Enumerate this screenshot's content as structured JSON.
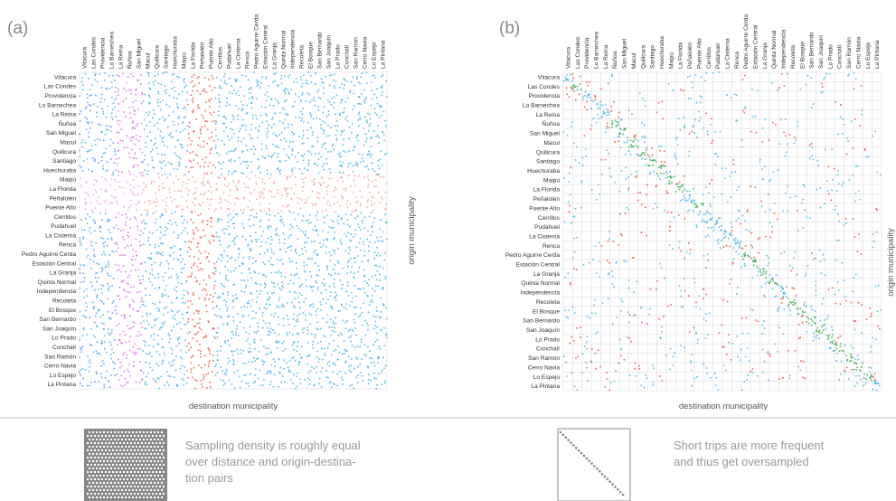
{
  "panels": [
    {
      "label": "(a)",
      "x_axis_label": "destination municipality",
      "y_axis_label": "origin municipality"
    },
    {
      "label": "(b)",
      "x_axis_label": "destination municipality",
      "y_axis_label": "origin municipality"
    }
  ],
  "municipalities": [
    "Vitacura",
    "Las Condes",
    "Providencia",
    "Lo Barnechea",
    "La Reina",
    "Ñuñoa",
    "San Miguel",
    "Macul",
    "Quilicura",
    "Santiago",
    "Huechuraba",
    "Maipú",
    "La Florida",
    "Peñalolén",
    "Puente Alto",
    "Cerrillos",
    "Pudahuel",
    "La Cisterna",
    "Renca",
    "Pedro Aguirre Cerda",
    "Estación Central",
    "La Granja",
    "Quinta Normal",
    "Independencia",
    "Recoleta",
    "El Bosque",
    "San Bernardo",
    "San Joaquín",
    "Lo Prado",
    "Conchalí",
    "San Ramón",
    "Cerro Navia",
    "Lo Espejo",
    "La Pintana"
  ],
  "captions": [
    {
      "lines": [
        "Sampling density is roughly equal",
        "over distance and origin-destina-",
        "tion pairs"
      ]
    },
    {
      "lines": [
        "Short trips are more frequent",
        "and thus get oversampled"
      ]
    }
  ]
}
